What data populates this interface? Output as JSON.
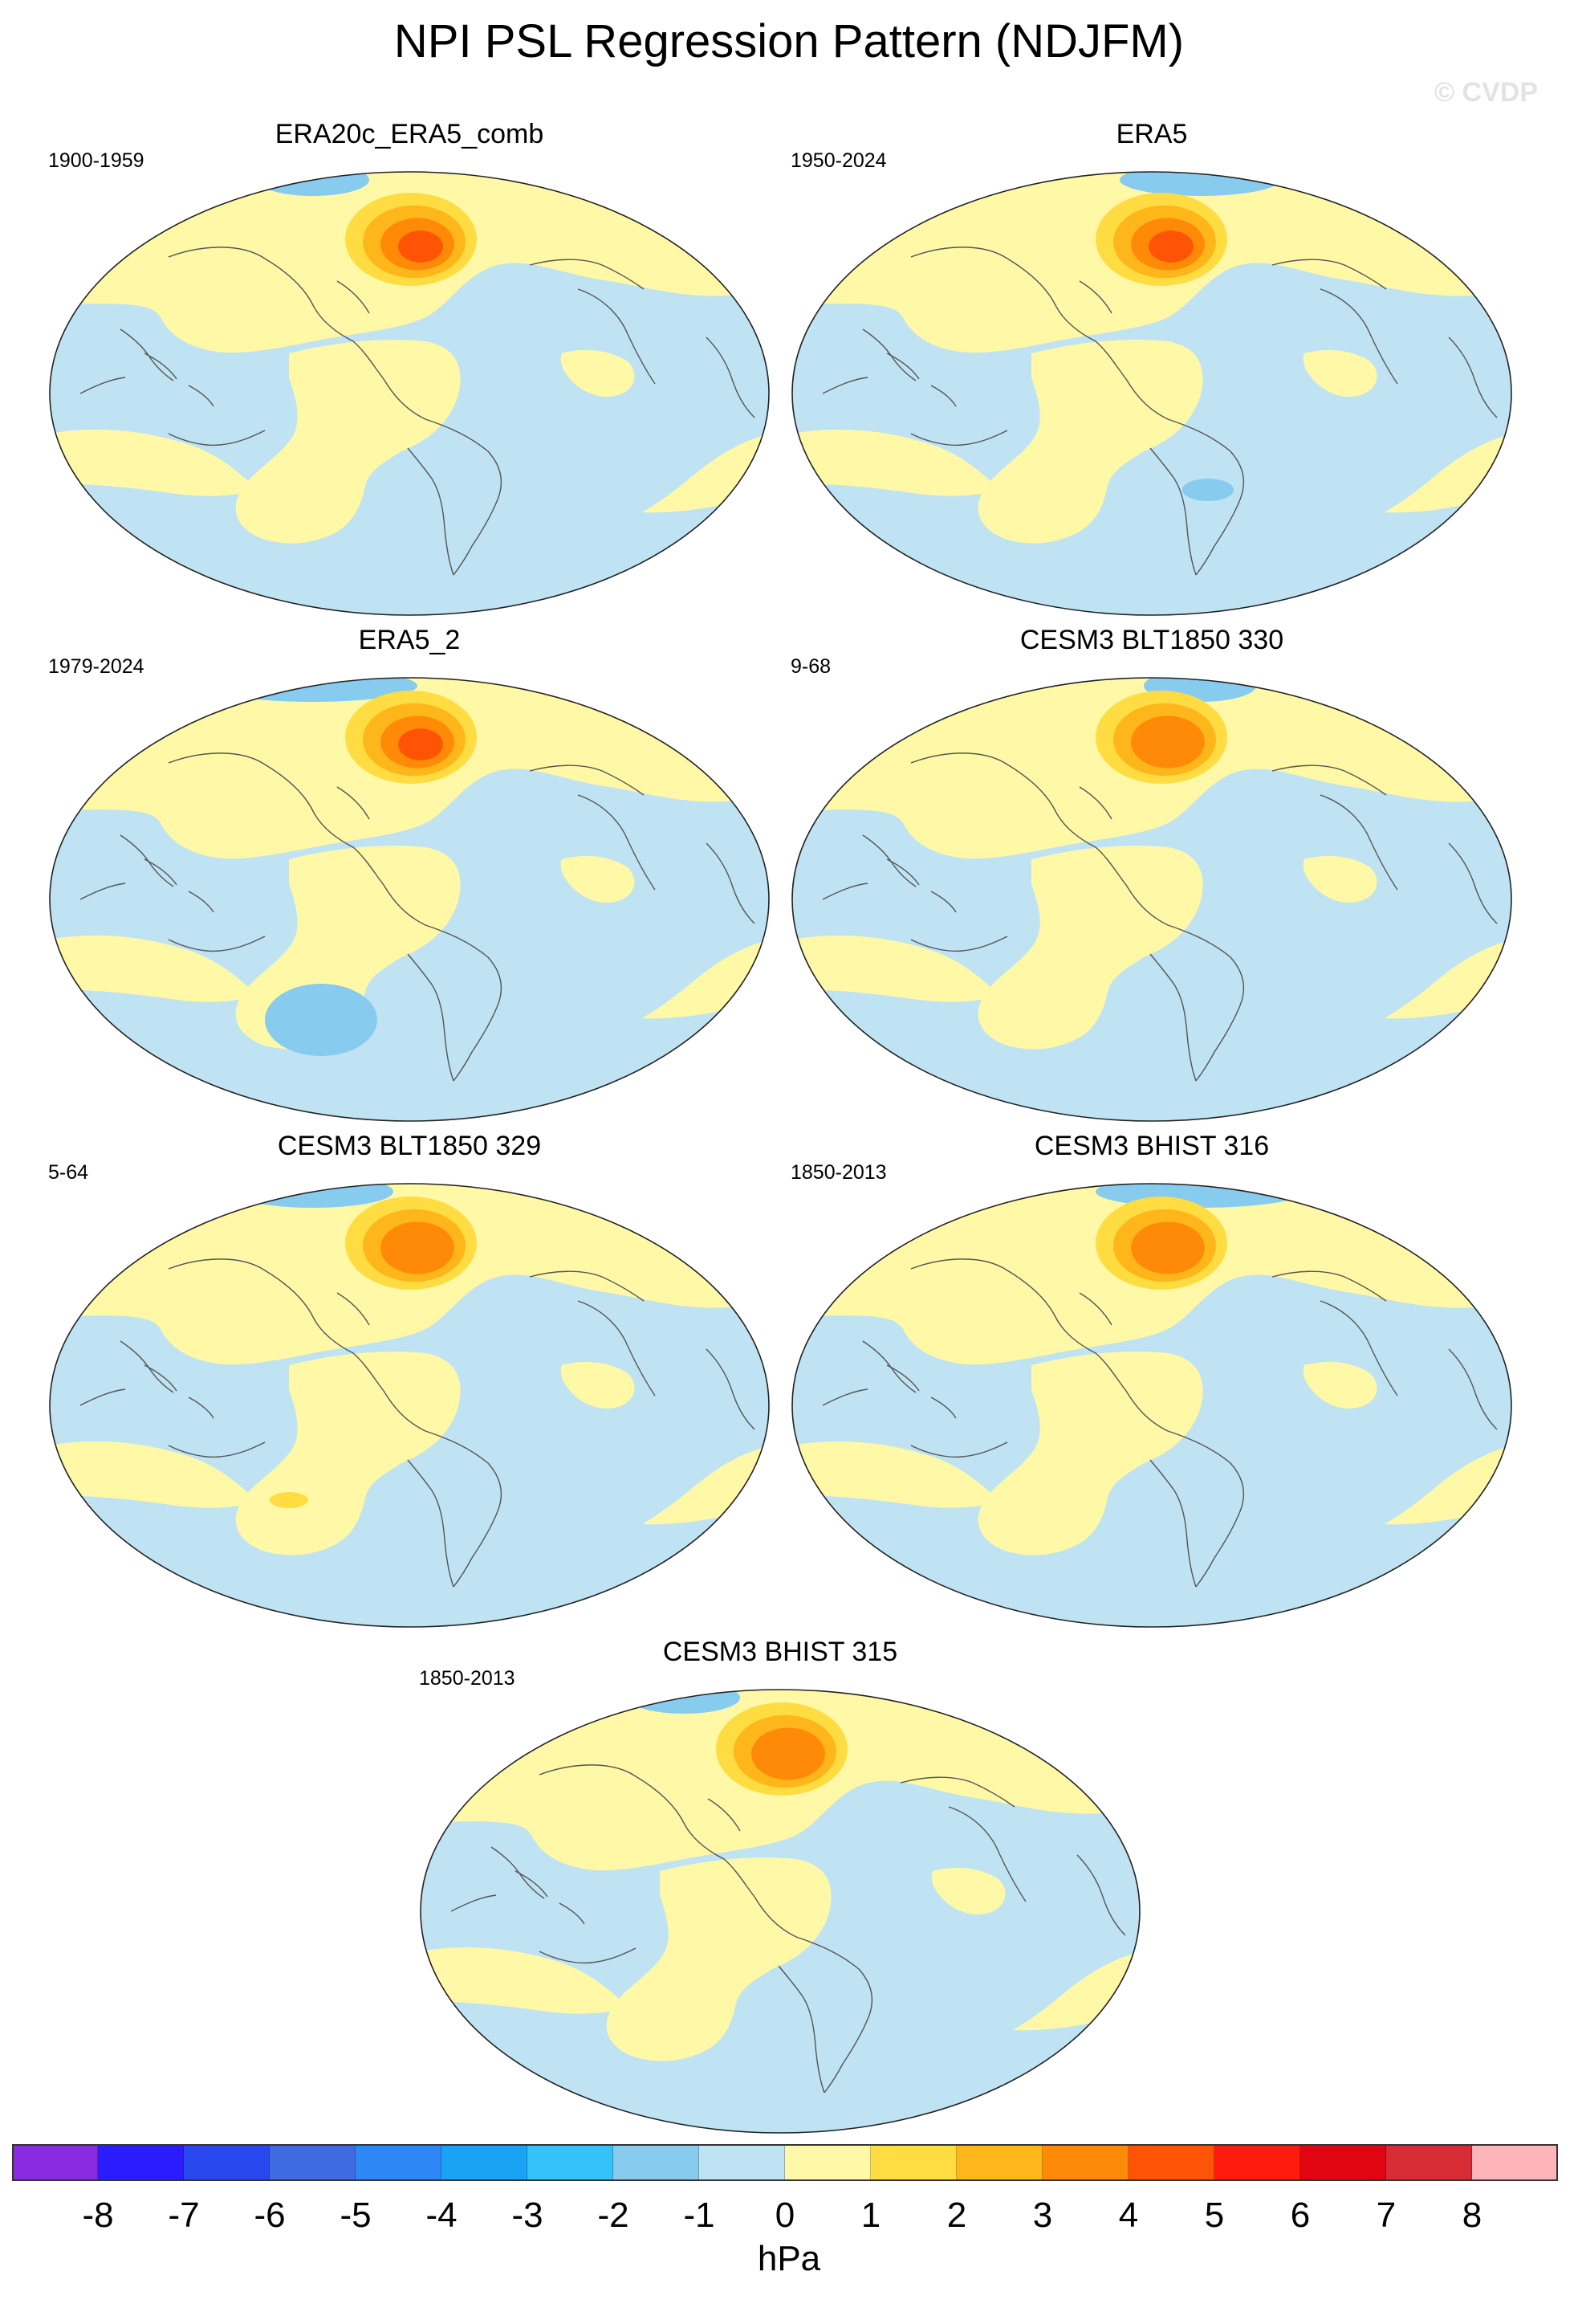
{
  "title": "NPI PSL Regression Pattern (NDJFM)",
  "watermark": "© CVDP",
  "panels": [
    {
      "title": "ERA20c_ERA5_comb",
      "period": "1900-1959",
      "peak_hpa": 4.0
    },
    {
      "title": "ERA5",
      "period": "1950-2024",
      "peak_hpa": 4.5
    },
    {
      "title": "ERA5_2",
      "period": "1979-2024",
      "peak_hpa": 4.2
    },
    {
      "title": "CESM3 BLT1850 330",
      "period": "9-68",
      "peak_hpa": 3.2
    },
    {
      "title": "CESM3 BLT1850 329",
      "period": "5-64",
      "peak_hpa": 3.6
    },
    {
      "title": "CESM3 BHIST 316",
      "period": "1850-2013",
      "peak_hpa": 3.6
    },
    {
      "title": "CESM3 BHIST 315",
      "period": "1850-2013",
      "peak_hpa": 3.3
    }
  ],
  "colorbar": {
    "unit": "hPa",
    "labels": [
      "-8",
      "-7",
      "-6",
      "-5",
      "-4",
      "-3",
      "-2",
      "-1",
      "0",
      "1",
      "2",
      "3",
      "4",
      "5",
      "6",
      "7",
      "8"
    ],
    "colors": [
      "#8a2be2",
      "#2a1cff",
      "#2848ee",
      "#3f6be0",
      "#2f86f5",
      "#1aa2f5",
      "#35c2fa",
      "#87cbef",
      "#bfe3f2",
      "#fff9a7",
      "#ffdd42",
      "#ffb61a",
      "#ff8a08",
      "#ff5306",
      "#ff1b0b",
      "#e00510",
      "#d62c34",
      "#ffb3ba"
    ]
  }
}
